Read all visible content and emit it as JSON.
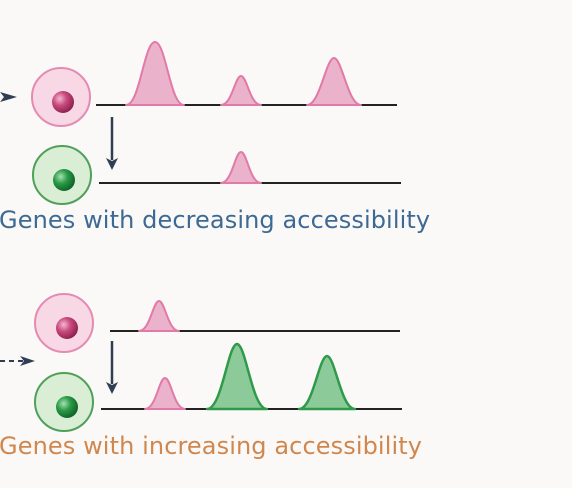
{
  "captions": {
    "decreasing": "Genes with decreasing accessibility",
    "increasing": "Genes with increasing accessibility"
  },
  "colors": {
    "background": "#fbf9f7",
    "decreasing_caption": "#3d6a94",
    "increasing_caption": "#d0874e",
    "pink_cell_fill": "#f8d8e5",
    "pink_cell_stroke": "#e58bb2",
    "pink_nucleus": "#b8386d",
    "green_cell_fill": "#d9eed5",
    "green_cell_stroke": "#4fa05a",
    "green_nucleus": "#1f8a3a",
    "pink_peak_fill": "#eab2cb",
    "pink_peak_stroke": "#e17aa6",
    "green_peak_fill": "#8ccb99",
    "green_peak_stroke": "#2e9a4a",
    "line": "#222222",
    "arrow": "#2f3e55"
  },
  "panels": [
    {
      "name": "decreasing",
      "rows": [
        {
          "cell": "pink",
          "peaks": [
            "pink-tall",
            "pink-small",
            "pink-medium"
          ]
        },
        {
          "cell": "green",
          "peaks": [
            "pink-small"
          ]
        }
      ]
    },
    {
      "name": "increasing",
      "rows": [
        {
          "cell": "pink",
          "peaks": [
            "pink-small"
          ]
        },
        {
          "cell": "green",
          "peaks": [
            "pink-small",
            "green-tall",
            "green-tall"
          ]
        }
      ]
    }
  ]
}
